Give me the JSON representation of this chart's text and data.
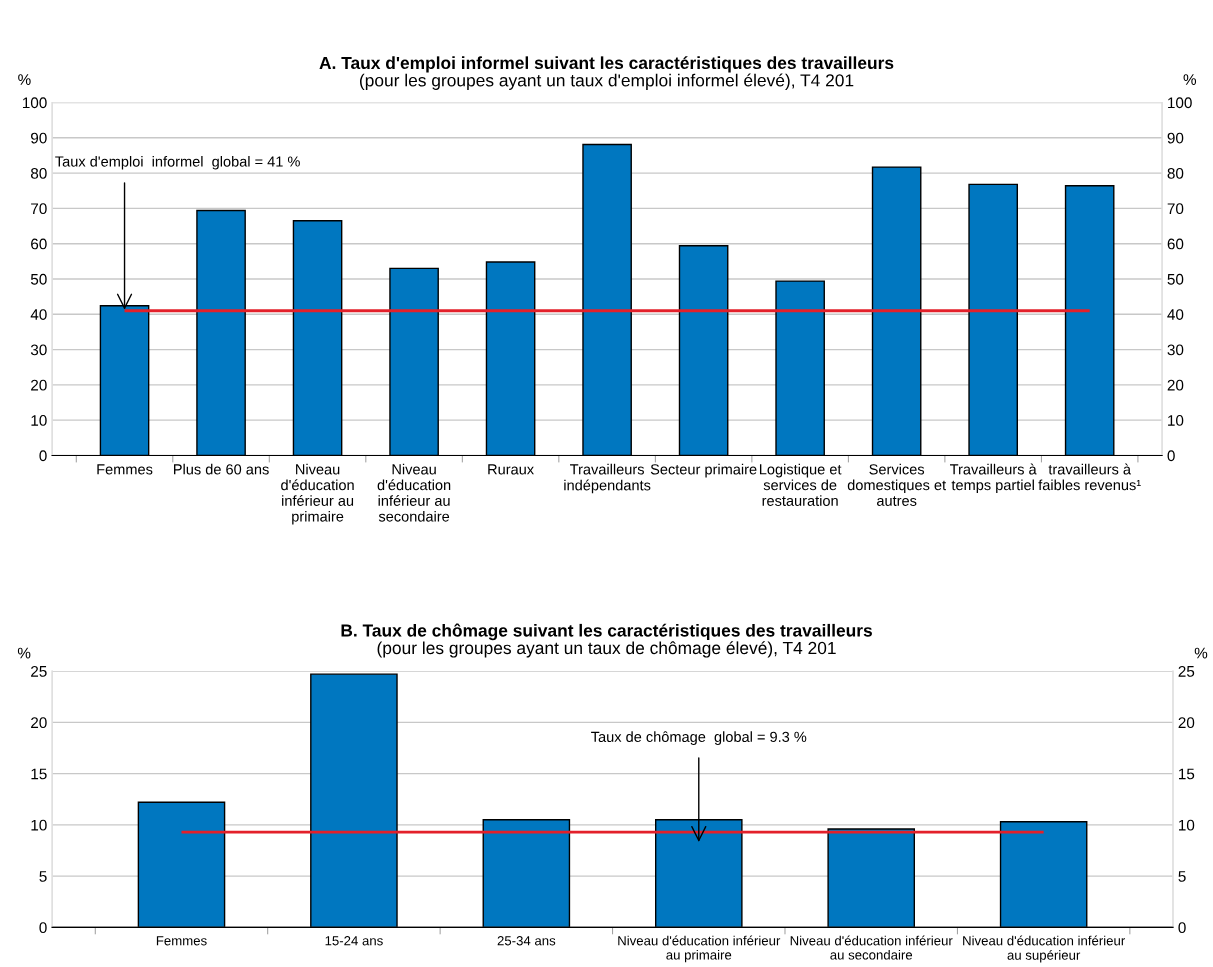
{
  "chart_data": [
    {
      "type": "bar",
      "title": "A. Taux d'emploi informel suivant les caractéristiques des travailleurs",
      "subtitle": "(pour les groupes ayant un taux d'emploi informel élevé), T4 201",
      "ylabel": "%",
      "y2label": "%",
      "categories": [
        "Femmes",
        "Plus de 60 ans",
        "Niveau\nd'éducation\ninférieur au\nprimaire",
        "Niveau\nd'éducation\ninférieur au\nsecondaire",
        "Ruraux",
        "Travailleurs\nindépendants",
        "Secteur primaire",
        "Logistique et\nservices de\nrestauration",
        "Services\ndomestiques et\nautres",
        "Travailleurs à\ntemps partiel",
        "travailleurs à\nfaibles revenus¹"
      ],
      "values": [
        42.4,
        69.4,
        66.5,
        53.0,
        54.8,
        88.1,
        59.4,
        49.4,
        81.7,
        76.8,
        76.4
      ],
      "color": "#0077c0",
      "ylim": [
        0,
        100
      ],
      "yticks": [
        0,
        10,
        20,
        30,
        40,
        50,
        60,
        70,
        80,
        90,
        100
      ],
      "y2lim": [
        0,
        100
      ],
      "y2ticks": [
        0,
        10,
        20,
        30,
        40,
        50,
        60,
        70,
        80,
        90,
        100
      ],
      "grid": "y",
      "ref_lines": [
        {
          "axis": "y",
          "value": 41,
          "color": "#e3202a"
        }
      ],
      "annotations": [
        {
          "text": "Taux d'emploi  informel  global = 41 %",
          "x": "Femmes",
          "y": 41
        }
      ]
    },
    {
      "type": "bar",
      "title": "B. Taux de chômage suivant les caractéristiques des travailleurs",
      "subtitle": "(pour les groupes ayant un taux de chômage élevé), T4 201",
      "ylabel": "%",
      "y2label": "%",
      "categories": [
        "Femmes",
        "15-24 ans",
        "25-34 ans",
        "Niveau d'éducation inférieur\nau primaire",
        "Niveau d'éducation inférieur\nau secondaire",
        "Niveau d'éducation inférieur\nau supérieur"
      ],
      "values": [
        12.2,
        24.7,
        10.5,
        10.5,
        9.6,
        10.3
      ],
      "color": "#0077c0",
      "ylim": [
        0,
        25
      ],
      "yticks": [
        0,
        5,
        10,
        15,
        20,
        25
      ],
      "y2lim": [
        0,
        25
      ],
      "y2ticks": [
        0,
        5,
        10,
        15,
        20,
        25
      ],
      "grid": "y",
      "ref_lines": [
        {
          "axis": "y",
          "value": 9.3,
          "color": "#e3202a"
        }
      ],
      "annotations": [
        {
          "text": "Taux de chômage  global = 9.3 %",
          "x": "Niveau d'éducation inférieur\nau primaire",
          "y": 9.3
        }
      ]
    }
  ]
}
